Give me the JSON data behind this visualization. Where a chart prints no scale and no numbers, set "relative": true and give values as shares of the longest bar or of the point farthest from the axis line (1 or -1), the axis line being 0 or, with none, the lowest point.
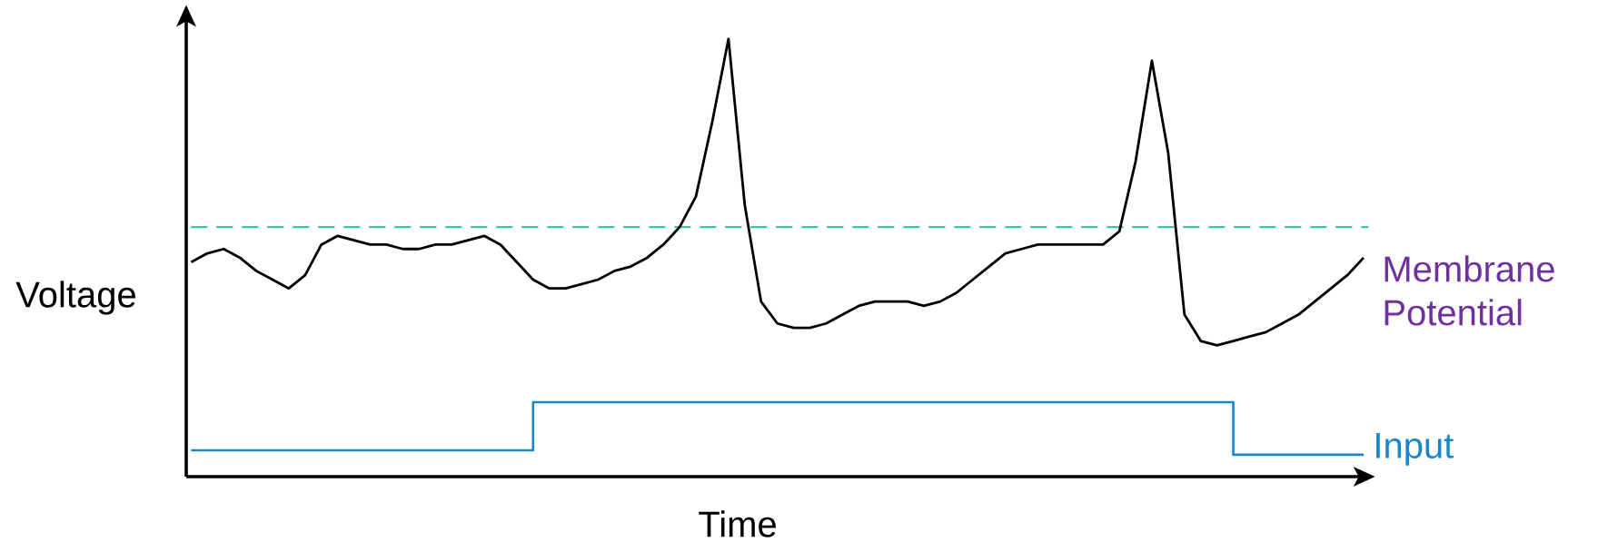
{
  "chart_data": {
    "type": "line",
    "relative": true,
    "xlabel": "Time",
    "ylabel": "Voltage",
    "categories": [
      null,
      null,
      null,
      null,
      null,
      null,
      null,
      null,
      null,
      null,
      null,
      null,
      null,
      null,
      null,
      null,
      null,
      null,
      null,
      null,
      null,
      null,
      null,
      null,
      null,
      null,
      null,
      null,
      null,
      null,
      null,
      null,
      null,
      null,
      null,
      null,
      null,
      null,
      null,
      null,
      null,
      null,
      null,
      null,
      null,
      null,
      null,
      null,
      null,
      null,
      null,
      null,
      null,
      null,
      null,
      null,
      null,
      null,
      null,
      null,
      null,
      null,
      null,
      null,
      null,
      null,
      null,
      null,
      null,
      null,
      null,
      null,
      null
    ],
    "series": [
      {
        "name": "Membrane Potential",
        "color": "#000000",
        "values": [
          0.49,
          0.51,
          0.52,
          0.5,
          0.47,
          0.45,
          0.43,
          0.46,
          0.53,
          0.55,
          0.54,
          0.53,
          0.53,
          0.52,
          0.52,
          0.53,
          0.53,
          0.54,
          0.55,
          0.53,
          0.49,
          0.45,
          0.43,
          0.43,
          0.44,
          0.45,
          0.47,
          0.48,
          0.5,
          0.53,
          0.57,
          0.64,
          0.81,
          1.0,
          0.62,
          0.4,
          0.35,
          0.34,
          0.34,
          0.35,
          0.37,
          0.39,
          0.4,
          0.4,
          0.4,
          0.39,
          0.4,
          0.42,
          0.45,
          0.48,
          0.51,
          0.52,
          0.53,
          0.53,
          0.53,
          0.53,
          0.53,
          0.56,
          0.72,
          0.95,
          0.74,
          0.37,
          0.31,
          0.3,
          0.31,
          0.32,
          0.33,
          0.35,
          0.37,
          0.4,
          0.43,
          0.46,
          0.5
        ]
      },
      {
        "name": "Input",
        "type": "step",
        "color": "#1a86cc",
        "values": [
          0.06,
          0.06,
          0.06,
          0.06,
          0.06,
          0.06,
          0.06,
          0.06,
          0.06,
          0.06,
          0.06,
          0.06,
          0.06,
          0.06,
          0.06,
          0.06,
          0.06,
          0.06,
          0.06,
          0.06,
          0.06,
          0.17,
          0.17,
          0.17,
          0.17,
          0.17,
          0.17,
          0.17,
          0.17,
          0.17,
          0.17,
          0.17,
          0.17,
          0.17,
          0.17,
          0.17,
          0.17,
          0.17,
          0.17,
          0.17,
          0.17,
          0.17,
          0.17,
          0.17,
          0.17,
          0.17,
          0.17,
          0.17,
          0.17,
          0.17,
          0.17,
          0.17,
          0.17,
          0.17,
          0.17,
          0.17,
          0.17,
          0.17,
          0.17,
          0.17,
          0.17,
          0.17,
          0.17,
          0.17,
          0.05,
          0.05,
          0.05,
          0.05,
          0.05,
          0.05,
          0.05,
          0.05,
          0.05
        ]
      }
    ],
    "ref_lines": [
      {
        "axis": "y",
        "value": 0.57,
        "color": "#33c9a8",
        "line_style": "dashed"
      }
    ]
  }
}
